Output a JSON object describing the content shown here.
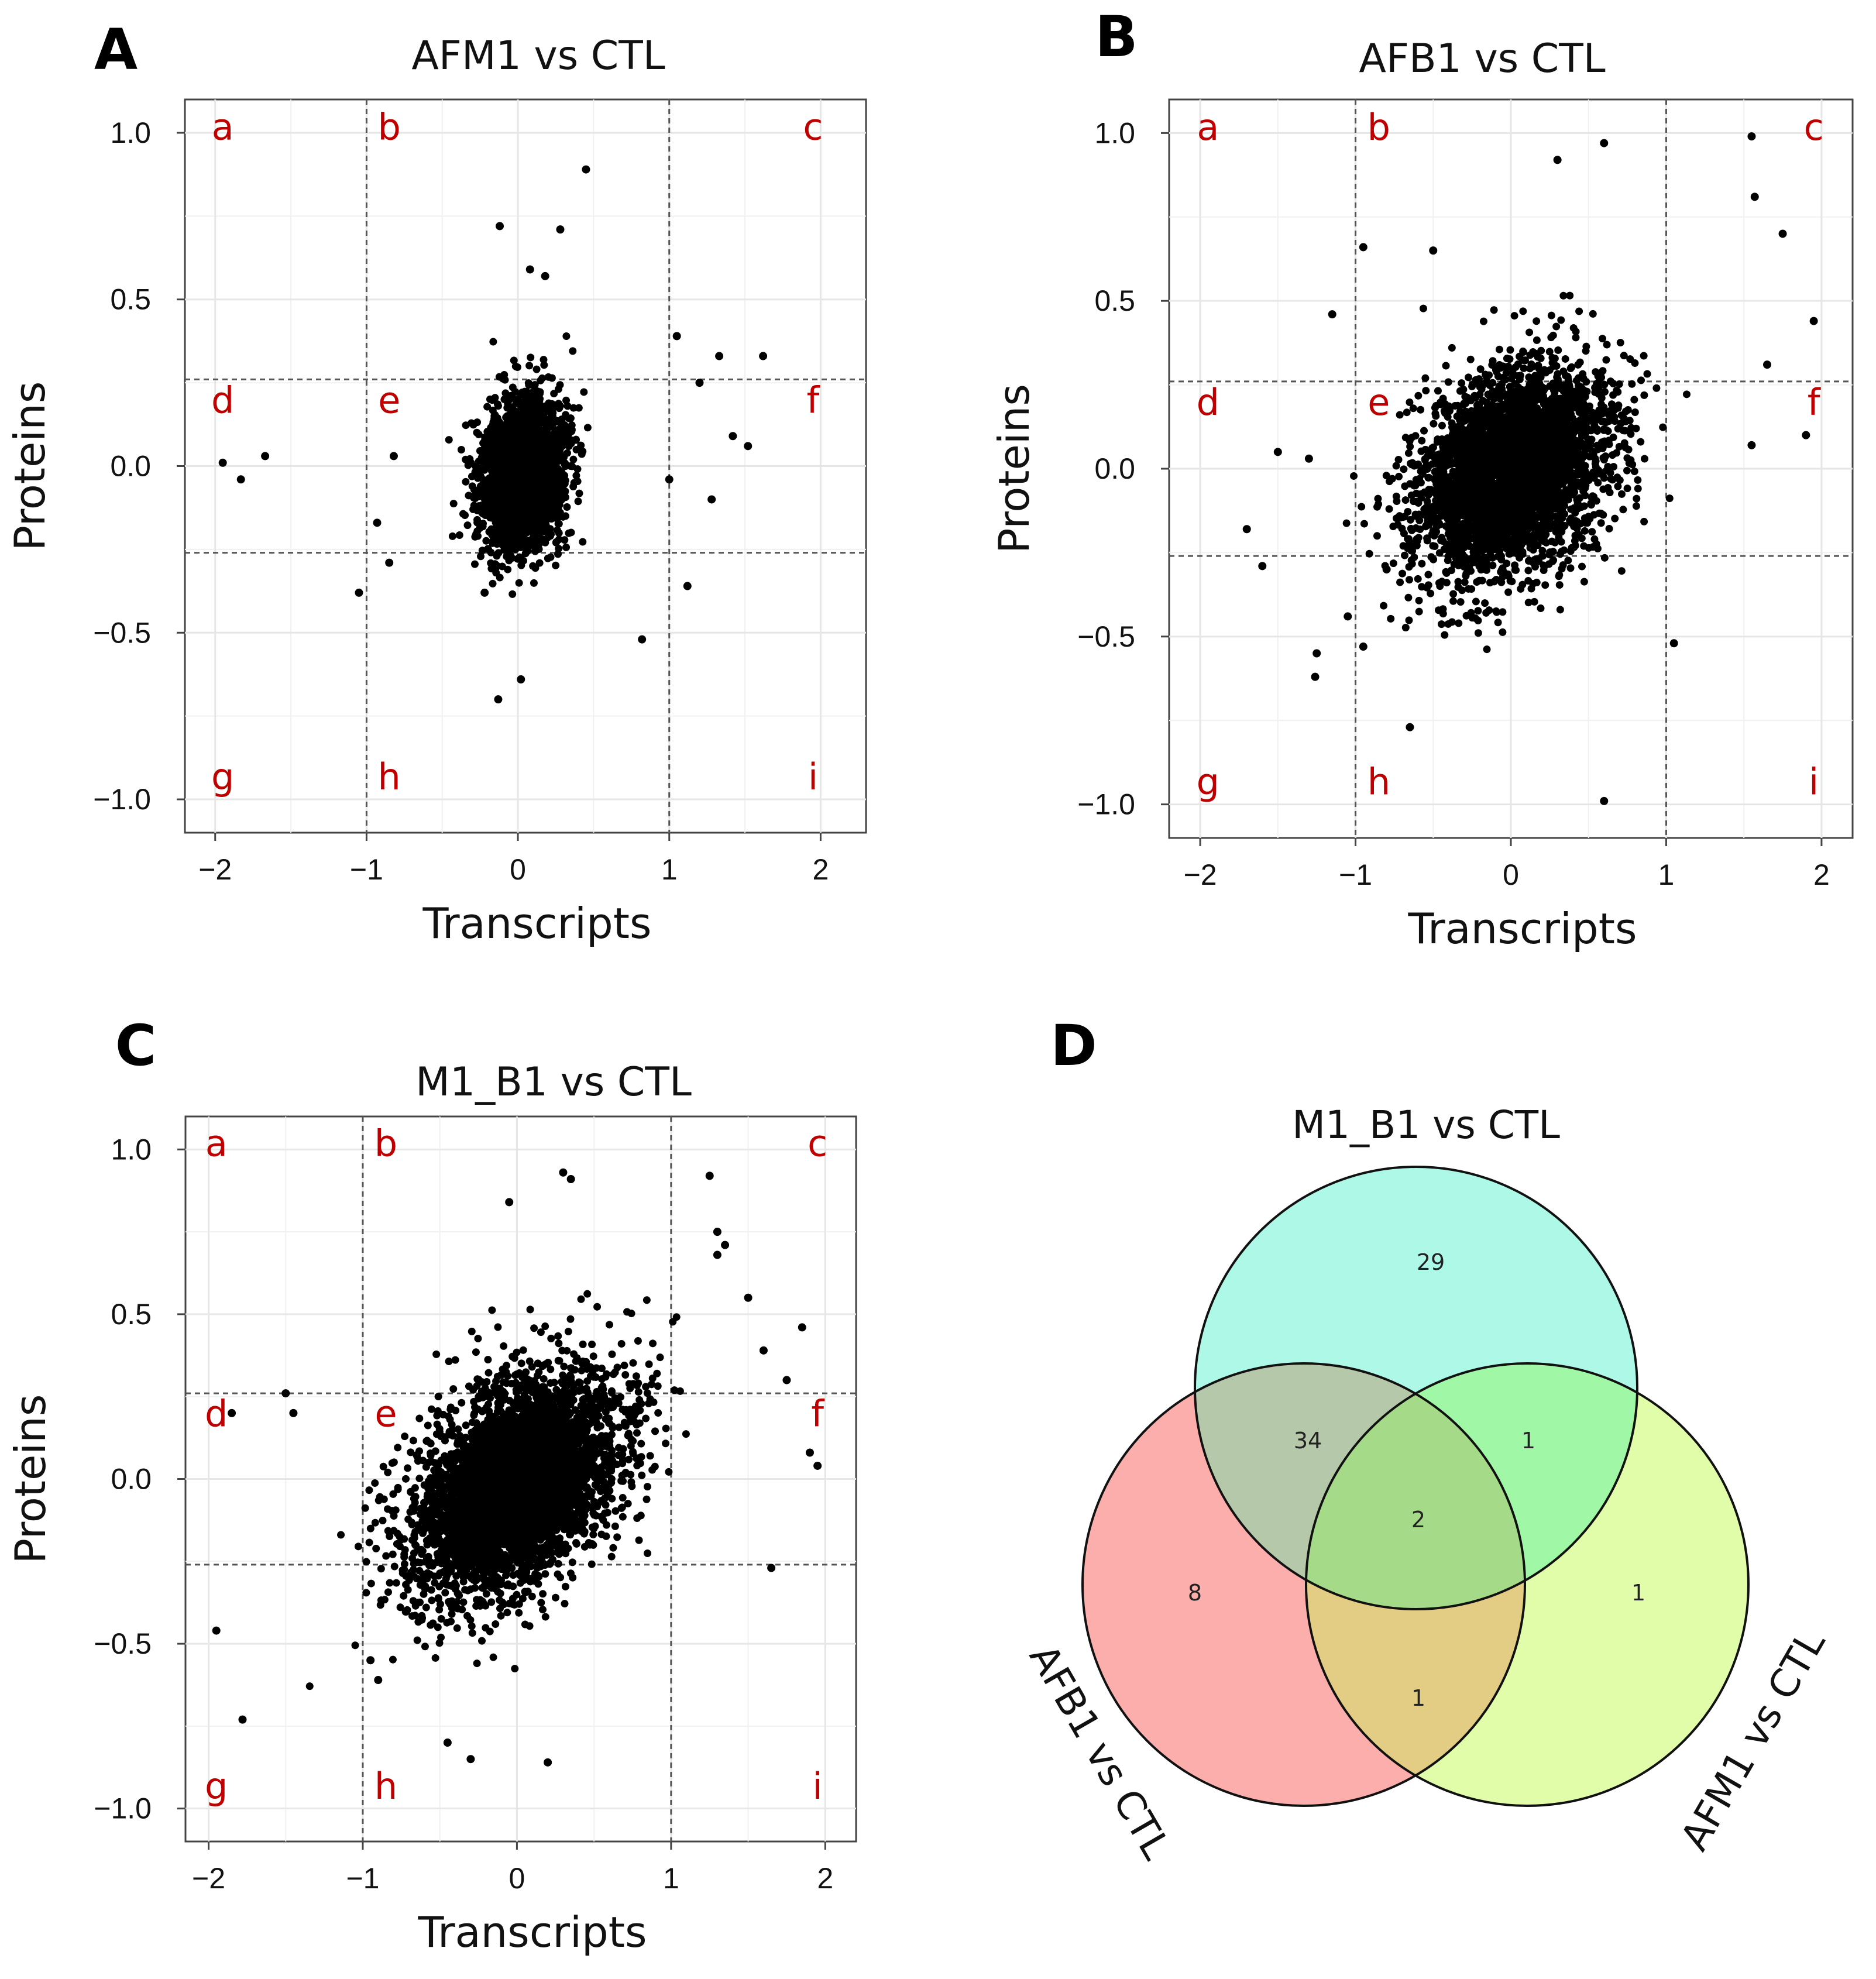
{
  "figure": {
    "panels": [
      {
        "letter": "A",
        "title": "AFM1 vs CTL",
        "xlabel": "Transcripts",
        "ylabel": "Proteins"
      },
      {
        "letter": "B",
        "title": "AFB1 vs CTL",
        "xlabel": "Transcripts",
        "ylabel": "Proteins"
      },
      {
        "letter": "C",
        "title": "M1_B1  vs CTL",
        "xlabel": "Transcripts",
        "ylabel": "Proteins"
      },
      {
        "letter": "D",
        "title": "",
        "xlabel": "",
        "ylabel": ""
      }
    ],
    "region_letters": [
      "a",
      "b",
      "c",
      "d",
      "e",
      "f",
      "g",
      "h",
      "i"
    ],
    "x_ticks": [
      "−2",
      "−1",
      "0",
      "1",
      "2"
    ],
    "y_ticks": [
      "1.0",
      "0.5",
      "0.0",
      "−0.5",
      "−1.0"
    ]
  },
  "chart_data": [
    {
      "type": "scatter",
      "panel": "A",
      "title": "AFM1 vs CTL",
      "xlabel": "Transcripts",
      "ylabel": "Proteins",
      "xlim": [
        -2.2,
        2.3
      ],
      "ylim": [
        -1.1,
        1.1
      ],
      "x_ticks": [
        -2,
        -1,
        0,
        1,
        2
      ],
      "y_ticks": [
        -1.0,
        -0.5,
        0.0,
        0.5,
        1.0
      ],
      "thresholds": {
        "x": [
          -1,
          1
        ],
        "y": [
          -0.26,
          0.26
        ]
      },
      "cloud": {
        "n": 2600,
        "x_mean": 0.03,
        "y_mean": -0.02,
        "x_sd": 0.14,
        "y_sd": 0.11,
        "corr": 0.15
      },
      "points": [
        [
          0.45,
          0.89
        ],
        [
          -0.12,
          0.72
        ],
        [
          0.28,
          0.71
        ],
        [
          0.08,
          0.59
        ],
        [
          0.18,
          0.57
        ],
        [
          -1.95,
          0.01
        ],
        [
          -1.83,
          -0.04
        ],
        [
          -1.67,
          0.03
        ],
        [
          1.33,
          0.33
        ],
        [
          1.62,
          0.33
        ],
        [
          1.52,
          0.06
        ],
        [
          1.28,
          -0.1
        ],
        [
          1.05,
          0.39
        ],
        [
          1.2,
          0.25
        ],
        [
          1.42,
          0.09
        ],
        [
          0.82,
          -0.52
        ],
        [
          -0.13,
          -0.7
        ],
        [
          -0.22,
          -0.38
        ],
        [
          0.02,
          -0.64
        ],
        [
          1.12,
          -0.36
        ],
        [
          -1.05,
          -0.38
        ],
        [
          -0.93,
          -0.17
        ],
        [
          -0.85,
          -0.29
        ],
        [
          1.0,
          -0.04
        ],
        [
          -0.82,
          0.03
        ]
      ]
    },
    {
      "type": "scatter",
      "panel": "B",
      "title": "AFB1 vs CTL",
      "xlabel": "Transcripts",
      "ylabel": "Proteins",
      "xlim": [
        -2.2,
        2.2
      ],
      "ylim": [
        -1.1,
        1.1
      ],
      "x_ticks": [
        -2,
        -1,
        0,
        1,
        2
      ],
      "y_ticks": [
        -1.0,
        -0.5,
        0.0,
        0.5,
        1.0
      ],
      "thresholds": {
        "x": [
          -1,
          1
        ],
        "y": [
          -0.26,
          0.26
        ]
      },
      "cloud": {
        "n": 3600,
        "x_mean": 0.0,
        "y_mean": -0.01,
        "x_sd": 0.3,
        "y_sd": 0.15,
        "corr": 0.3
      },
      "points": [
        [
          1.55,
          0.99
        ],
        [
          0.6,
          0.97
        ],
        [
          0.3,
          0.92
        ],
        [
          1.57,
          0.81
        ],
        [
          1.75,
          0.7
        ],
        [
          1.95,
          0.44
        ],
        [
          -0.95,
          0.66
        ],
        [
          -0.5,
          0.65
        ],
        [
          -1.15,
          0.46
        ],
        [
          -1.3,
          0.03
        ],
        [
          -1.5,
          0.05
        ],
        [
          -1.6,
          -0.29
        ],
        [
          -1.7,
          -0.18
        ],
        [
          -1.25,
          -0.55
        ],
        [
          -1.26,
          -0.62
        ],
        [
          -0.65,
          -0.77
        ],
        [
          0.6,
          -0.99
        ],
        [
          1.05,
          -0.52
        ],
        [
          1.9,
          0.1
        ],
        [
          1.55,
          0.07
        ],
        [
          1.65,
          0.31
        ],
        [
          -0.8,
          -0.3
        ],
        [
          -1.05,
          -0.44
        ],
        [
          -0.95,
          -0.53
        ]
      ]
    },
    {
      "type": "scatter",
      "panel": "C",
      "title": "M1_B1  vs CTL",
      "xlabel": "Transcripts",
      "ylabel": "Proteins",
      "xlim": [
        -2.15,
        2.2
      ],
      "ylim": [
        -1.1,
        1.1
      ],
      "x_ticks": [
        -2,
        -1,
        0,
        1,
        2
      ],
      "y_ticks": [
        -1.0,
        -0.5,
        0.0,
        0.5,
        1.0
      ],
      "thresholds": {
        "x": [
          -1,
          1
        ],
        "y": [
          -0.26,
          0.26
        ]
      },
      "cloud": {
        "n": 4200,
        "x_mean": 0.0,
        "y_mean": -0.02,
        "x_sd": 0.34,
        "y_sd": 0.17,
        "corr": 0.45
      },
      "points": [
        [
          1.25,
          0.92
        ],
        [
          0.3,
          0.93
        ],
        [
          0.35,
          0.91
        ],
        [
          -0.05,
          0.84
        ],
        [
          1.3,
          0.75
        ],
        [
          1.35,
          0.71
        ],
        [
          -1.95,
          -0.46
        ],
        [
          -1.78,
          -0.73
        ],
        [
          -1.85,
          0.2
        ],
        [
          -1.45,
          0.2
        ],
        [
          -1.5,
          0.26
        ],
        [
          -0.95,
          -0.55
        ],
        [
          -0.9,
          -0.61
        ],
        [
          0.2,
          -0.86
        ],
        [
          -0.3,
          -0.85
        ],
        [
          -0.45,
          -0.8
        ],
        [
          1.65,
          -0.27
        ],
        [
          1.95,
          0.04
        ],
        [
          1.85,
          0.46
        ],
        [
          1.75,
          0.3
        ],
        [
          1.9,
          0.08
        ],
        [
          1.5,
          0.55
        ],
        [
          1.6,
          0.39
        ],
        [
          1.3,
          0.68
        ]
      ]
    },
    {
      "type": "venn",
      "panel": "D",
      "sets": [
        "M1_B1 vs CTL",
        "AFB1 vs CTL",
        "AFM1 vs CTL"
      ],
      "colors": {
        "M1_B1 vs CTL": "#adf8e6",
        "AFB1 vs CTL": "#fbaeab",
        "AFM1 vs CTL": "#e2fdaa"
      },
      "regions": [
        {
          "sets": [
            "M1_B1 vs CTL"
          ],
          "value": "29",
          "color": "#adf8e6"
        },
        {
          "sets": [
            "AFB1 vs CTL"
          ],
          "value": "8",
          "color": "#fbaeab"
        },
        {
          "sets": [
            "AFM1 vs CTL"
          ],
          "value": "1",
          "color": "#e2fdaa"
        },
        {
          "sets": [
            "M1_B1 vs CTL",
            "AFB1 vs CTL"
          ],
          "value": "34",
          "color": "#b5c8a9"
        },
        {
          "sets": [
            "M1_B1 vs CTL",
            "AFM1 vs CTL"
          ],
          "value": "1",
          "color": "#a0f8a6"
        },
        {
          "sets": [
            "AFB1 vs CTL",
            "AFM1 vs CTL"
          ],
          "value": "1",
          "color": "#e3cc83"
        },
        {
          "sets": [
            "M1_B1 vs CTL",
            "AFB1 vs CTL",
            "AFM1 vs CTL"
          ],
          "value": "2",
          "color": "#a5da89"
        }
      ]
    }
  ]
}
